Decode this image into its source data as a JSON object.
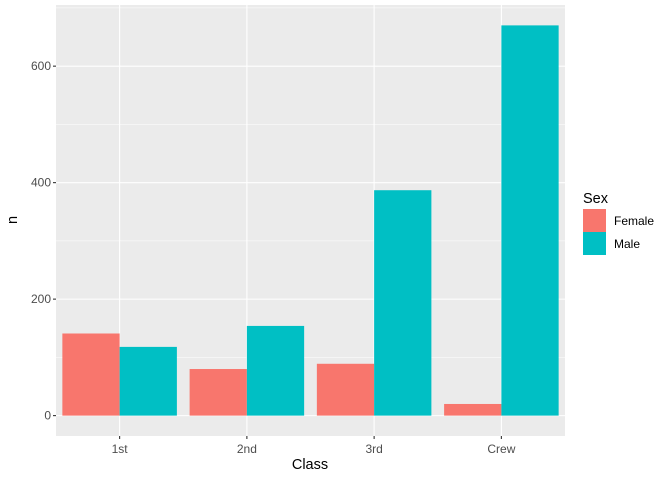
{
  "chart_data": {
    "type": "bar",
    "xlabel": "Class",
    "ylabel": "n",
    "categories": [
      "1st",
      "2nd",
      "3rd",
      "Crew"
    ],
    "ylim": [
      -35,
      705
    ],
    "yticks": [
      0,
      200,
      400,
      600
    ],
    "grid": true,
    "legend": {
      "title": "Sex",
      "position": "right"
    },
    "series": [
      {
        "name": "Female",
        "color": "#F8766D",
        "values": [
          141,
          80,
          89,
          20
        ]
      },
      {
        "name": "Male",
        "color": "#00BFC4",
        "values": [
          118,
          154,
          387,
          670
        ]
      }
    ],
    "panel_background": "#EBEBEB",
    "grid_color": "#FFFFFF"
  }
}
